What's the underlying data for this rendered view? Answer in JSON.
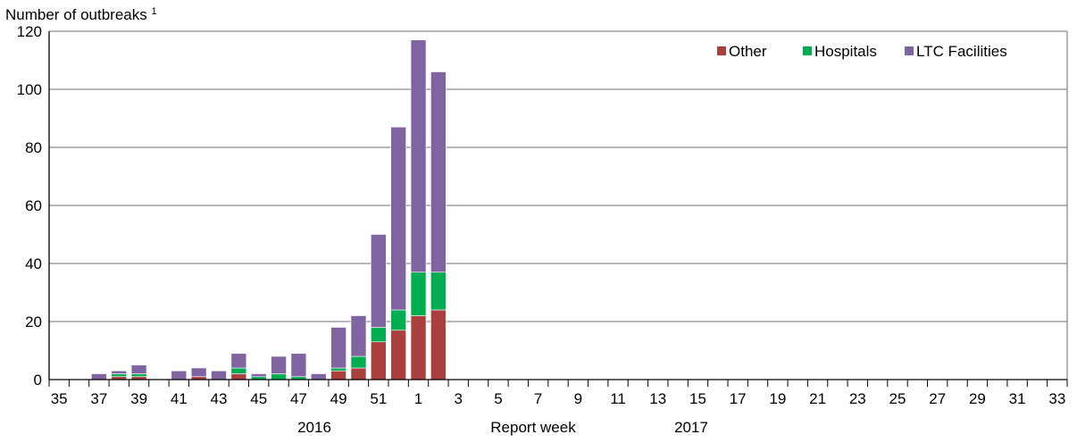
{
  "chart_data": {
    "type": "bar",
    "stacked": true,
    "ylabel": "Number of outbreaks",
    "ylabel_superscript": "1",
    "xlabel": "Report week",
    "year_labels": [
      "2016",
      "2017"
    ],
    "ylim": [
      0,
      120
    ],
    "yticks": [
      0,
      20,
      40,
      60,
      80,
      100,
      120
    ],
    "grid": true,
    "legend_position": "top-right",
    "categories": [
      "35",
      "36",
      "37",
      "38",
      "39",
      "40",
      "41",
      "42",
      "43",
      "44",
      "45",
      "46",
      "47",
      "48",
      "49",
      "50",
      "51",
      "52",
      "1",
      "2",
      "3",
      "4",
      "5",
      "6",
      "7",
      "8",
      "9",
      "10",
      "11",
      "12",
      "13",
      "14",
      "15",
      "16",
      "17",
      "18",
      "19",
      "20",
      "21",
      "22",
      "23",
      "24",
      "25",
      "26",
      "27",
      "28",
      "29",
      "30",
      "31",
      "32",
      "33"
    ],
    "series": [
      {
        "name": "Other",
        "color": "#a9403e",
        "values": [
          0,
          0,
          0,
          1,
          1,
          0,
          0,
          1,
          0,
          2,
          0,
          0,
          0,
          0,
          3,
          4,
          13,
          17,
          22,
          24,
          0,
          0,
          0,
          0,
          0,
          0,
          0,
          0,
          0,
          0,
          0,
          0,
          0,
          0,
          0,
          0,
          0,
          0,
          0,
          0,
          0,
          0,
          0,
          0,
          0,
          0,
          0,
          0,
          0,
          0,
          0
        ]
      },
      {
        "name": "Hospitals",
        "color": "#00ad50",
        "values": [
          0,
          0,
          0,
          1,
          1,
          0,
          0,
          0,
          0,
          2,
          1,
          2,
          1,
          0,
          1,
          4,
          5,
          7,
          15,
          13,
          0,
          0,
          0,
          0,
          0,
          0,
          0,
          0,
          0,
          0,
          0,
          0,
          0,
          0,
          0,
          0,
          0,
          0,
          0,
          0,
          0,
          0,
          0,
          0,
          0,
          0,
          0,
          0,
          0,
          0,
          0
        ]
      },
      {
        "name": "LTC Facilities",
        "color": "#8064a2",
        "values": [
          0,
          0,
          2,
          1,
          3,
          0,
          3,
          3,
          3,
          5,
          1,
          6,
          8,
          2,
          14,
          14,
          32,
          63,
          80,
          69,
          0,
          0,
          0,
          0,
          0,
          0,
          0,
          0,
          0,
          0,
          0,
          0,
          0,
          0,
          0,
          0,
          0,
          0,
          0,
          0,
          0,
          0,
          0,
          0,
          0,
          0,
          0,
          0,
          0,
          0,
          0
        ]
      }
    ]
  }
}
